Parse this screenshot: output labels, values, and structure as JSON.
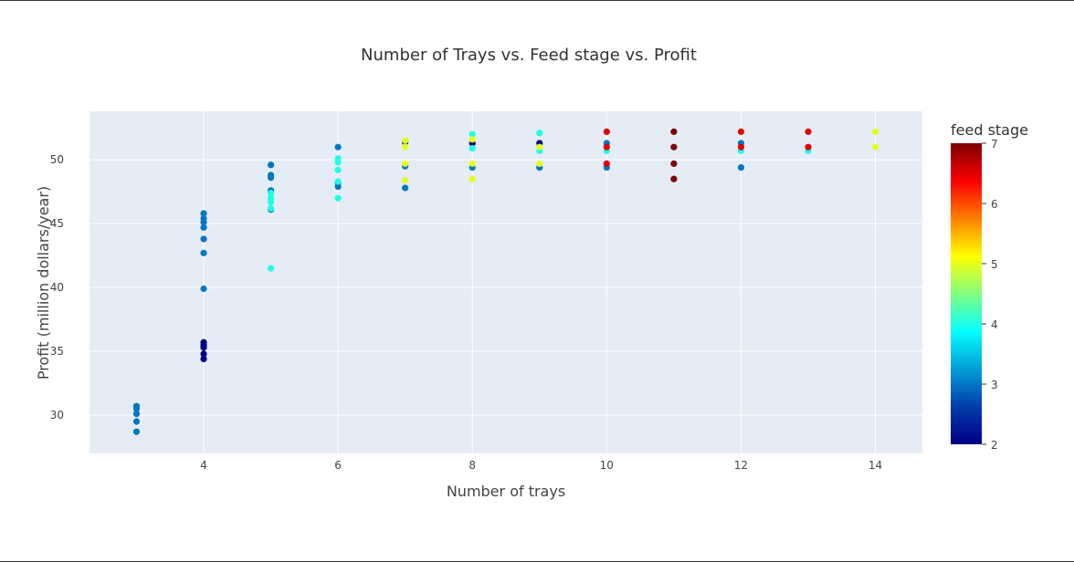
{
  "chart_data": {
    "type": "scatter",
    "title": "Number of Trays vs. Feed stage vs. Profit",
    "xlabel": "Number of trays",
    "ylabel": "Profit (million dollars/year)",
    "xlim": [
      2.3,
      14.7
    ],
    "ylim": [
      27,
      53.8
    ],
    "xticks": [
      4,
      6,
      8,
      10,
      12,
      14
    ],
    "yticks": [
      30,
      35,
      40,
      45,
      50
    ],
    "grid": true,
    "colorbar": {
      "title": "feed stage",
      "colorscale": "Jet",
      "range": [
        2,
        7
      ],
      "ticks": [
        2,
        3,
        4,
        5,
        6,
        7
      ]
    },
    "points": [
      {
        "x": 3,
        "y": 30.7,
        "c": 3
      },
      {
        "x": 3,
        "y": 30.5,
        "c": 3
      },
      {
        "x": 3,
        "y": 30.1,
        "c": 3
      },
      {
        "x": 3,
        "y": 29.5,
        "c": 3
      },
      {
        "x": 3,
        "y": 28.7,
        "c": 3
      },
      {
        "x": 4,
        "y": 45.8,
        "c": 3
      },
      {
        "x": 4,
        "y": 45.4,
        "c": 3
      },
      {
        "x": 4,
        "y": 45.1,
        "c": 3
      },
      {
        "x": 4,
        "y": 44.7,
        "c": 3
      },
      {
        "x": 4,
        "y": 43.8,
        "c": 3
      },
      {
        "x": 4,
        "y": 42.7,
        "c": 3
      },
      {
        "x": 4,
        "y": 39.9,
        "c": 3
      },
      {
        "x": 4,
        "y": 35.7,
        "c": 2
      },
      {
        "x": 4,
        "y": 35.5,
        "c": 2
      },
      {
        "x": 4,
        "y": 35.3,
        "c": 2
      },
      {
        "x": 4,
        "y": 34.8,
        "c": 2
      },
      {
        "x": 4,
        "y": 34.4,
        "c": 2
      },
      {
        "x": 5,
        "y": 49.6,
        "c": 3
      },
      {
        "x": 5,
        "y": 48.8,
        "c": 3
      },
      {
        "x": 5,
        "y": 48.6,
        "c": 3
      },
      {
        "x": 5,
        "y": 47.6,
        "c": 3
      },
      {
        "x": 5,
        "y": 46.1,
        "c": 3
      },
      {
        "x": 5,
        "y": 47.4,
        "c": 4
      },
      {
        "x": 5,
        "y": 47.0,
        "c": 4
      },
      {
        "x": 5,
        "y": 46.7,
        "c": 4
      },
      {
        "x": 5,
        "y": 46.2,
        "c": 4
      },
      {
        "x": 5,
        "y": 41.5,
        "c": 4
      },
      {
        "x": 6,
        "y": 51.0,
        "c": 3
      },
      {
        "x": 6,
        "y": 48.2,
        "c": 3
      },
      {
        "x": 6,
        "y": 47.9,
        "c": 3
      },
      {
        "x": 6,
        "y": 50.1,
        "c": 4
      },
      {
        "x": 6,
        "y": 49.8,
        "c": 4
      },
      {
        "x": 6,
        "y": 49.2,
        "c": 4
      },
      {
        "x": 6,
        "y": 48.3,
        "c": 4
      },
      {
        "x": 6,
        "y": 47.0,
        "c": 4
      },
      {
        "x": 7,
        "y": 51.4,
        "c": 2
      },
      {
        "x": 7,
        "y": 49.5,
        "c": 3
      },
      {
        "x": 7,
        "y": 47.8,
        "c": 3
      },
      {
        "x": 7,
        "y": 51.5,
        "c": 5
      },
      {
        "x": 7,
        "y": 51.0,
        "c": 5
      },
      {
        "x": 7,
        "y": 49.7,
        "c": 5
      },
      {
        "x": 7,
        "y": 48.4,
        "c": 5
      },
      {
        "x": 8,
        "y": 51.3,
        "c": 2
      },
      {
        "x": 8,
        "y": 49.4,
        "c": 3
      },
      {
        "x": 8,
        "y": 52.0,
        "c": 4
      },
      {
        "x": 8,
        "y": 50.9,
        "c": 4
      },
      {
        "x": 8,
        "y": 51.6,
        "c": 5
      },
      {
        "x": 8,
        "y": 49.7,
        "c": 5
      },
      {
        "x": 8,
        "y": 48.5,
        "c": 5
      },
      {
        "x": 9,
        "y": 51.3,
        "c": 2
      },
      {
        "x": 9,
        "y": 49.4,
        "c": 3
      },
      {
        "x": 9,
        "y": 52.1,
        "c": 4
      },
      {
        "x": 9,
        "y": 50.7,
        "c": 4
      },
      {
        "x": 9,
        "y": 51.0,
        "c": 5
      },
      {
        "x": 9,
        "y": 49.7,
        "c": 5
      },
      {
        "x": 10,
        "y": 51.3,
        "c": 3
      },
      {
        "x": 10,
        "y": 49.4,
        "c": 3
      },
      {
        "x": 10,
        "y": 50.7,
        "c": 4
      },
      {
        "x": 10,
        "y": 52.2,
        "c": 6.5
      },
      {
        "x": 10,
        "y": 51.0,
        "c": 6.5
      },
      {
        "x": 10,
        "y": 49.7,
        "c": 6.5
      },
      {
        "x": 11,
        "y": 52.2,
        "c": 7
      },
      {
        "x": 11,
        "y": 51.0,
        "c": 7
      },
      {
        "x": 11,
        "y": 49.7,
        "c": 7
      },
      {
        "x": 11,
        "y": 48.5,
        "c": 7
      },
      {
        "x": 12,
        "y": 51.3,
        "c": 3
      },
      {
        "x": 12,
        "y": 49.4,
        "c": 3
      },
      {
        "x": 12,
        "y": 50.7,
        "c": 4
      },
      {
        "x": 12,
        "y": 52.2,
        "c": 6.5
      },
      {
        "x": 12,
        "y": 51.0,
        "c": 6.5
      },
      {
        "x": 13,
        "y": 50.7,
        "c": 4
      },
      {
        "x": 13,
        "y": 52.2,
        "c": 6.5
      },
      {
        "x": 13,
        "y": 51.0,
        "c": 6.5
      },
      {
        "x": 14,
        "y": 52.2,
        "c": 5
      },
      {
        "x": 14,
        "y": 51.0,
        "c": 5
      }
    ]
  }
}
